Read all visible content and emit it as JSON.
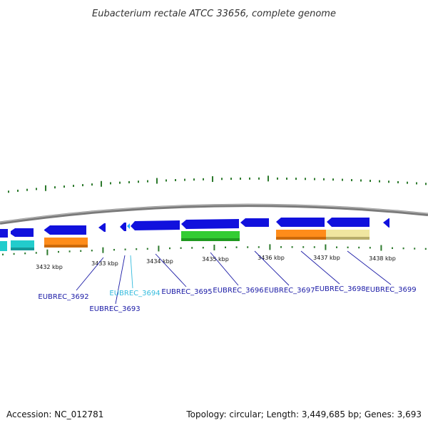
{
  "title": "Eubacterium rectale ATCC 33656, complete genome",
  "footer": {
    "accession": "Accession: NC_012781",
    "summary": "Topology: circular; Length: 3,449,685 bp; Genes: 3,693"
  },
  "colors": {
    "backbone": "#888888",
    "gene_blue": "#1111dd",
    "cyan": "#22cccc",
    "orange": "#ff8c1a",
    "green": "#33cc33",
    "khaki": "#f0e6a0",
    "tick_green": "#2d7a2d",
    "label_blue": "#1a1aa6",
    "label_highlight": "#33bbdd"
  },
  "kbp_labels": [
    "3432 kbp",
    "3433 kbp",
    "3434 kbp",
    "3435 kbp",
    "3436 kbp",
    "3437 kbp",
    "3438 kbp"
  ],
  "genes": [
    {
      "id": "EUBREC_3692",
      "highlight": false
    },
    {
      "id": "EUBREC_3693",
      "highlight": false
    },
    {
      "id": "EUBREC_3694",
      "highlight": true
    },
    {
      "id": "EUBREC_3695",
      "highlight": false
    },
    {
      "id": "EUBREC_3696",
      "highlight": false
    },
    {
      "id": "EUBREC_3697",
      "highlight": false
    },
    {
      "id": "EUBREC_3698",
      "highlight": false
    },
    {
      "id": "EUBREC_3699",
      "highlight": false
    }
  ]
}
